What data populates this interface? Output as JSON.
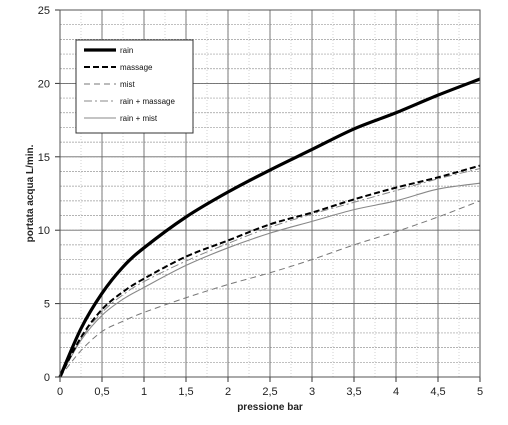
{
  "chart_data": {
    "type": "line",
    "xlabel": "pressione bar",
    "ylabel": "portata acqua  L/min.",
    "xlim": [
      0,
      5
    ],
    "ylim": [
      0,
      25
    ],
    "x_ticks": [
      "0",
      "0,5",
      "1",
      "1,5",
      "2",
      "2,5",
      "3",
      "3,5",
      "4",
      "4,5",
      "5"
    ],
    "x_tick_values": [
      0,
      0.5,
      1,
      1.5,
      2,
      2.5,
      3,
      3.5,
      4,
      4.5,
      5
    ],
    "y_ticks": [
      "0",
      "5",
      "10",
      "15",
      "20",
      "25"
    ],
    "y_tick_values": [
      0,
      5,
      10,
      15,
      20,
      25
    ],
    "y_minor_step": 1,
    "x_minor_step": 0.25,
    "grid": true,
    "legend_position": "top-left",
    "series": [
      {
        "name": "rain",
        "color": "#000000",
        "style": "solid-thick",
        "x": [
          0,
          0.25,
          0.5,
          0.75,
          1,
          1.5,
          2,
          2.5,
          3,
          3.5,
          4,
          4.5,
          5
        ],
        "y": [
          0,
          3.3,
          5.7,
          7.5,
          8.8,
          10.9,
          12.6,
          14.1,
          15.5,
          16.9,
          18.0,
          19.2,
          20.3
        ]
      },
      {
        "name": "massage",
        "color": "#000000",
        "style": "dashed",
        "x": [
          0,
          0.25,
          0.5,
          0.75,
          1,
          1.5,
          2,
          2.5,
          3,
          3.5,
          4,
          4.5,
          5
        ],
        "y": [
          0,
          2.7,
          4.6,
          5.8,
          6.7,
          8.2,
          9.3,
          10.4,
          11.2,
          12.1,
          12.9,
          13.6,
          14.4
        ]
      },
      {
        "name": "mist",
        "color": "#777777",
        "style": "dashed-thin",
        "x": [
          0,
          0.25,
          0.5,
          0.75,
          1,
          1.5,
          2,
          2.5,
          3,
          3.5,
          4,
          4.5,
          5
        ],
        "y": [
          0,
          1.8,
          3.1,
          3.8,
          4.4,
          5.4,
          6.3,
          7.1,
          8.0,
          9.0,
          9.9,
          10.9,
          12.0
        ]
      },
      {
        "name": "rain + massage",
        "color": "#888888",
        "style": "dash-dot",
        "x": [
          0,
          0.25,
          0.5,
          0.75,
          1,
          1.5,
          2,
          2.5,
          3,
          3.5,
          4,
          4.5,
          5
        ],
        "y": [
          0,
          2.6,
          4.4,
          5.6,
          6.5,
          7.9,
          9.1,
          10.2,
          11.1,
          11.9,
          12.7,
          13.5,
          14.2
        ]
      },
      {
        "name": "rain + mist",
        "color": "#888888",
        "style": "solid-thin",
        "x": [
          0,
          0.25,
          0.5,
          0.75,
          1,
          1.5,
          2,
          2.5,
          3,
          3.5,
          4,
          4.5,
          5
        ],
        "y": [
          0,
          2.5,
          4.2,
          5.3,
          6.1,
          7.6,
          8.8,
          9.8,
          10.6,
          11.4,
          12.0,
          12.8,
          13.2
        ]
      }
    ]
  }
}
